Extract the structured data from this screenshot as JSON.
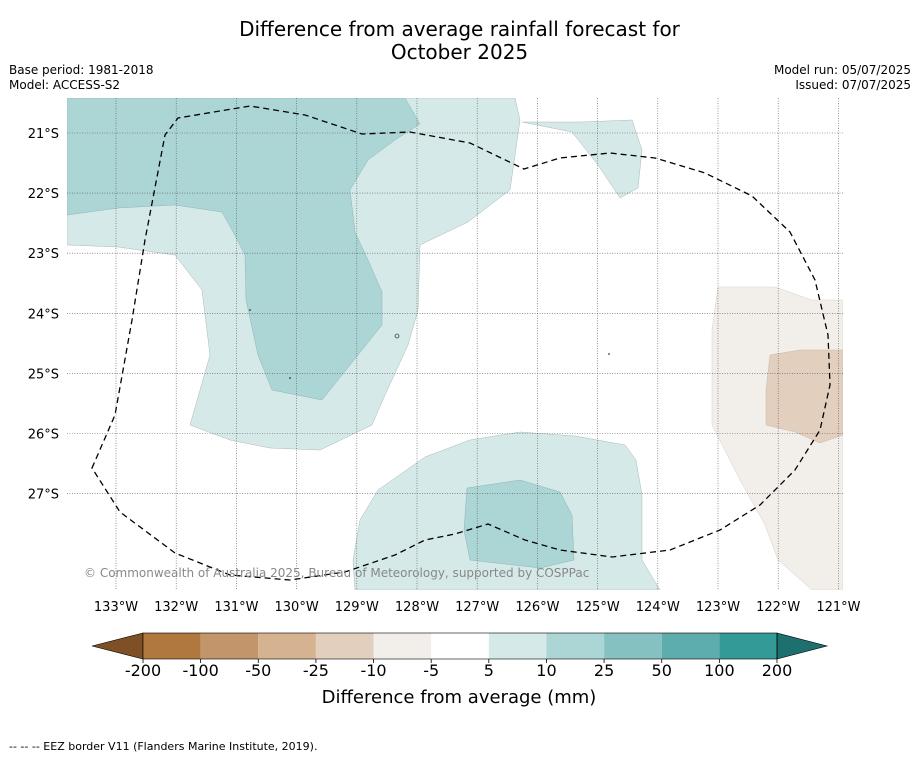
{
  "title_line1": "Difference from average rainfall forecast for",
  "title_line2": "October 2025",
  "base_period": "Base period: 1981-2018",
  "model": "Model: ACCESS-S2",
  "model_run": "Model run: 05/07/2025",
  "issued": "Issued: 07/07/2025",
  "copyright": "© Commonwealth of Australia 2025, Bureau of Meteorology, supported by COSPPac",
  "footnote": "-- -- -- EEZ border V11 (Flanders Marine Institute, 2019).",
  "map": {
    "lon_range": [
      -133.8,
      -121.0
    ],
    "lat_range": [
      -20.45,
      -28.6
    ],
    "lat_ticks": [
      "21°S",
      "22°S",
      "23°S",
      "24°S",
      "25°S",
      "26°S",
      "27°S"
    ],
    "lon_ticks": [
      "133°W",
      "132°W",
      "131°W",
      "130°W",
      "129°W",
      "128°W",
      "127°W",
      "126°W",
      "125°W",
      "124°W",
      "123°W",
      "122°W",
      "121°W"
    ],
    "gridlines": true,
    "eez_border": "dashed"
  },
  "colorbar": {
    "label": "Difference from average (mm)",
    "ticks": [
      "-200",
      "-100",
      "-50",
      "-25",
      "-10",
      "-5",
      "5",
      "10",
      "25",
      "50",
      "100",
      "200"
    ],
    "colors": [
      "#7f5026",
      "#b0773f",
      "#c3956b",
      "#d5b290",
      "#e2cfbd",
      "#f2eee9",
      "#ffffff",
      "#d4e9e8",
      "#acd5d5",
      "#85c1c1",
      "#5dadad",
      "#349a98",
      "#1d706e"
    ]
  },
  "chart_data": {
    "type": "heatmap",
    "title": "Difference from average rainfall forecast for October 2025",
    "xlabel": "",
    "ylabel": "",
    "colorbar_label": "Difference from average (mm)",
    "levels": [
      -200,
      -100,
      -50,
      -25,
      -10,
      -5,
      5,
      10,
      25,
      50,
      100,
      200
    ],
    "regions": [
      {
        "level": "5 to 10",
        "area": "western band 21°S-26°S, 133°W-128°W"
      },
      {
        "level": "10 to 25",
        "area": "northwest core 21°S-25°S, 133°W-129°W"
      },
      {
        "level": "5 to 10",
        "area": "south centre 26°S-28.5°S, 129°W-125°W"
      },
      {
        "level": "10 to 25",
        "area": "south core around 27.5°S, 126.5°W"
      },
      {
        "level": "-10 to -5",
        "area": "east 23.5°S-28.5°S, 123°W-121°W"
      },
      {
        "level": "-25 to -10",
        "area": "east core around 25°S, 121.5°W"
      }
    ]
  }
}
